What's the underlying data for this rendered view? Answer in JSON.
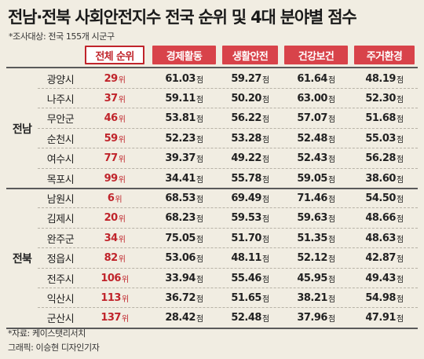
{
  "title": "전남·전북 사회안전지수 전국 순위 및 4대 분야별 점수",
  "subtitle": "*조사대상: 전국 155개 시군구",
  "headers": {
    "rank": "전체 순위",
    "economy": "경제활동",
    "life_safety": "생활안전",
    "health": "건강보건",
    "housing": "주거환경"
  },
  "rank_unit": "위",
  "score_unit": "점",
  "regions": [
    {
      "name": "전남",
      "rows": [
        {
          "city": "광양시",
          "rank": "29",
          "economy": "61.03",
          "life_safety": "59.27",
          "health": "61.64",
          "housing": "48.19"
        },
        {
          "city": "나주시",
          "rank": "37",
          "economy": "59.11",
          "life_safety": "50.20",
          "health": "63.00",
          "housing": "52.30"
        },
        {
          "city": "무안군",
          "rank": "46",
          "economy": "53.81",
          "life_safety": "56.22",
          "health": "57.07",
          "housing": "51.68"
        },
        {
          "city": "순천시",
          "rank": "59",
          "economy": "52.23",
          "life_safety": "53.28",
          "health": "52.48",
          "housing": "55.03"
        },
        {
          "city": "여수시",
          "rank": "77",
          "economy": "39.37",
          "life_safety": "49.22",
          "health": "52.43",
          "housing": "56.28"
        },
        {
          "city": "목포시",
          "rank": "99",
          "economy": "34.41",
          "life_safety": "55.78",
          "health": "59.05",
          "housing": "38.60"
        }
      ]
    },
    {
      "name": "전북",
      "rows": [
        {
          "city": "남원시",
          "rank": "6",
          "economy": "68.53",
          "life_safety": "69.49",
          "health": "71.46",
          "housing": "54.50"
        },
        {
          "city": "김제시",
          "rank": "20",
          "economy": "68.23",
          "life_safety": "59.53",
          "health": "59.63",
          "housing": "48.66"
        },
        {
          "city": "완주군",
          "rank": "34",
          "economy": "75.05",
          "life_safety": "51.70",
          "health": "51.35",
          "housing": "48.63"
        },
        {
          "city": "정읍시",
          "rank": "82",
          "economy": "53.06",
          "life_safety": "48.11",
          "health": "52.12",
          "housing": "42.87"
        },
        {
          "city": "전주시",
          "rank": "106",
          "economy": "33.94",
          "life_safety": "55.46",
          "health": "45.95",
          "housing": "49.43"
        },
        {
          "city": "익산시",
          "rank": "113",
          "economy": "36.72",
          "life_safety": "51.65",
          "health": "38.21",
          "housing": "54.98"
        },
        {
          "city": "군산시",
          "rank": "137",
          "economy": "28.42",
          "life_safety": "52.48",
          "health": "37.96",
          "housing": "47.91"
        }
      ]
    }
  ],
  "source": "*자료: 케이스탯리서치",
  "credit": "그래픽: 이승현 디자인기자",
  "colors": {
    "accent": "#d8434a",
    "rank_text": "#c0242b",
    "background": "#f1ede2"
  }
}
